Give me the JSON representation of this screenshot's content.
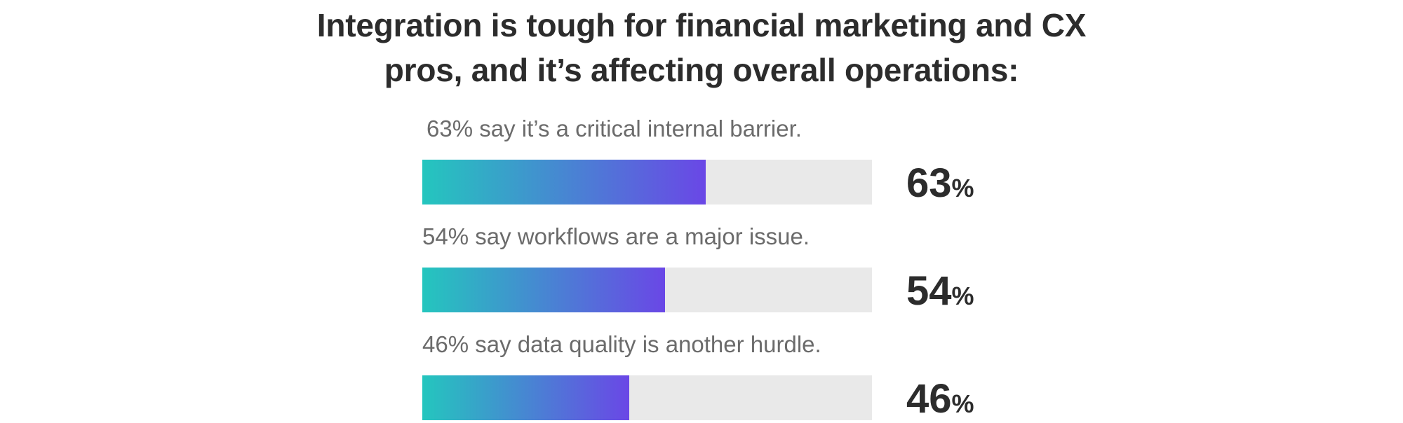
{
  "title": {
    "line1": "Integration is tough for financial marketing and CX",
    "line2": "pros, and it’s affecting overall operations:"
  },
  "colors": {
    "gradient_start": "#24c6be",
    "gradient_end": "#6a47e6",
    "track": "#e9e9e9",
    "caption": "#6b6b6b",
    "heading": "#2c2c2c"
  },
  "chart_data": {
    "type": "bar",
    "orientation": "horizontal",
    "title": "Integration is tough for financial marketing and CX pros, and it’s affecting overall operations:",
    "categories": [
      "63% say it’s a critical internal barrier.",
      "54% say workflows are a major issue.",
      "46% say data quality is another hurdle."
    ],
    "values": [
      63,
      54,
      46
    ],
    "xlim": [
      0,
      100
    ],
    "unit": "%",
    "grid": false,
    "bars": [
      {
        "caption": " 63% say it’s a critical internal barrier.",
        "value": 63,
        "value_text": "63",
        "unit_text": "%"
      },
      {
        "caption": "54% say workflows are a major issue.",
        "value": 54,
        "value_text": "54",
        "unit_text": "%"
      },
      {
        "caption": "46% say data quality is another hurdle.",
        "value": 46,
        "value_text": "46",
        "unit_text": "%"
      }
    ]
  }
}
